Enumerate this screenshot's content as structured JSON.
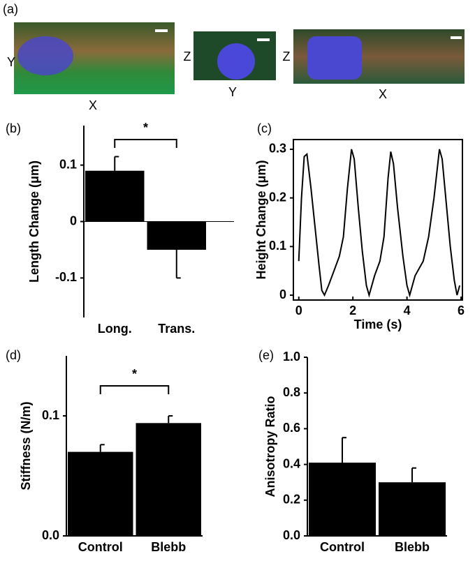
{
  "panel_a": {
    "label": "(a)",
    "images": [
      {
        "vertical": "Y",
        "horizontal": "X"
      },
      {
        "vertical": "Z",
        "horizontal": "Y"
      },
      {
        "vertical": "Z",
        "horizontal": "X"
      }
    ]
  },
  "chart_data": [
    {
      "type": "bar",
      "label": "(b)",
      "ylabel": "Length Change (μm)",
      "categories": [
        "Long.",
        "Trans."
      ],
      "values": [
        0.09,
        -0.05
      ],
      "errors": [
        0.025,
        0.05
      ],
      "color": "#000000",
      "ylim": [
        -0.17,
        0.17
      ],
      "yticks": [
        -0.1,
        0,
        0.1
      ],
      "zero_line": true,
      "annotation": "*"
    },
    {
      "type": "line",
      "label": "(c)",
      "xlabel": "Time (s)",
      "ylabel": "Height Change (μm)",
      "x": [
        0,
        0.1,
        0.2,
        0.3,
        0.45,
        0.6,
        0.75,
        0.85,
        0.95,
        1.1,
        1.3,
        1.5,
        1.65,
        1.8,
        1.95,
        2.05,
        2.2,
        2.35,
        2.5,
        2.6,
        2.8,
        3.0,
        3.15,
        3.3,
        3.4,
        3.5,
        3.65,
        3.85,
        4.0,
        4.1,
        4.3,
        4.6,
        4.8,
        5.0,
        5.2,
        5.3,
        5.45,
        5.6,
        5.75,
        5.85,
        5.95
      ],
      "values": [
        0.07,
        0.2,
        0.285,
        0.29,
        0.22,
        0.14,
        0.06,
        0.01,
        0,
        0.02,
        0.05,
        0.08,
        0.12,
        0.22,
        0.3,
        0.28,
        0.18,
        0.09,
        0.02,
        0,
        0.04,
        0.07,
        0.12,
        0.24,
        0.295,
        0.27,
        0.18,
        0.08,
        0.02,
        0,
        0.04,
        0.07,
        0.12,
        0.2,
        0.3,
        0.28,
        0.19,
        0.1,
        0.03,
        0,
        0.02
      ],
      "color": "#000000",
      "xlim": [
        -0.2,
        6.05
      ],
      "xticks": [
        0,
        2,
        4,
        6
      ],
      "ylim": [
        -0.01,
        0.32
      ],
      "yticks": [
        0,
        0.1,
        0.2,
        0.3
      ]
    },
    {
      "type": "bar",
      "label": "(d)",
      "ylabel": "Stiffness (N/m)",
      "categories": [
        "Control",
        "Blebb"
      ],
      "values": [
        0.07,
        0.094
      ],
      "errors": [
        0.006,
        0.006
      ],
      "color": "#000000",
      "ylim": [
        0,
        0.15
      ],
      "yticks": [
        {
          "value": 0,
          "label": "0.0"
        },
        0.1
      ],
      "annotation": "*"
    },
    {
      "type": "bar",
      "label": "(e)",
      "ylabel": "Anisotropy Ratio",
      "categories": [
        "Control",
        "Blebb"
      ],
      "values": [
        0.41,
        0.3
      ],
      "errors": [
        0.14,
        0.08
      ],
      "color": "#000000",
      "ylim": [
        0,
        1.0
      ],
      "yticks": [
        {
          "value": 0,
          "label": "0.0"
        },
        0.2,
        0.4,
        0.6,
        0.8,
        {
          "value": 1,
          "label": "1.0"
        }
      ]
    }
  ]
}
